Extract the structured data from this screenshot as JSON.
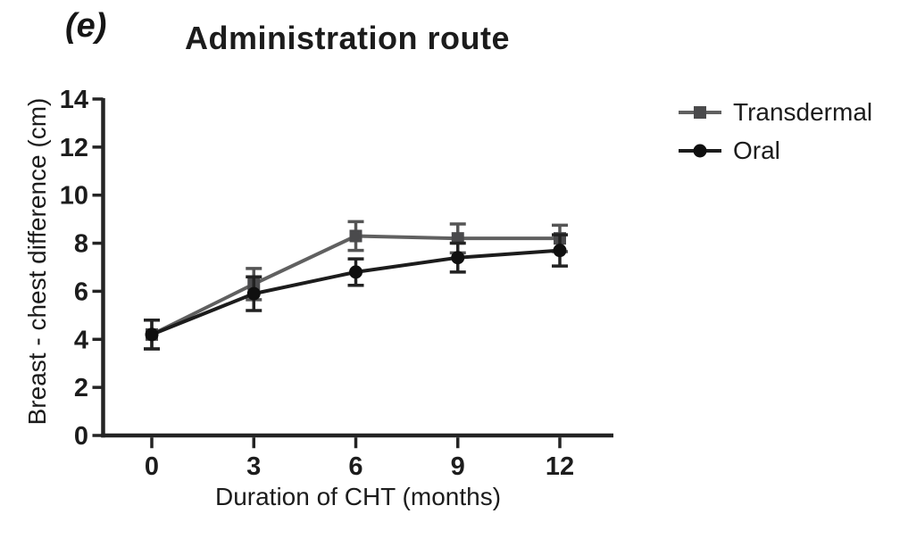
{
  "figure": {
    "panel_label": "(e)",
    "background_color": "#ffffff",
    "text_color": "#1c1c1c",
    "axis_color": "#242424"
  },
  "chart_data": {
    "type": "line",
    "title": "Administration route",
    "xlabel": "Duration of CHT (months)",
    "ylabel": "Breast - chest difference (cm)",
    "x": [
      0,
      3,
      6,
      9,
      12
    ],
    "x_tick_labels": [
      "0",
      "3",
      "6",
      "9",
      "12"
    ],
    "y_ticks": [
      0,
      2,
      4,
      6,
      8,
      10,
      12,
      14
    ],
    "ylim": [
      0,
      14
    ],
    "grid": false,
    "error_bars": true,
    "legend_position": "right-outside",
    "series": [
      {
        "name": "Transdermal",
        "marker": "square",
        "color": "#606060",
        "marker_color": "#4a4a4c",
        "error_color": "#555555",
        "values": [
          4.2,
          6.3,
          8.3,
          8.2,
          8.2
        ],
        "errors": [
          0.6,
          0.65,
          0.6,
          0.6,
          0.55
        ]
      },
      {
        "name": "Oral",
        "marker": "circle",
        "color": "#1c1c1c",
        "marker_color": "#0f0f0f",
        "error_color": "#222222",
        "values": [
          4.2,
          5.9,
          6.8,
          7.4,
          7.7
        ],
        "errors": [
          0.6,
          0.7,
          0.55,
          0.6,
          0.65
        ]
      }
    ]
  }
}
